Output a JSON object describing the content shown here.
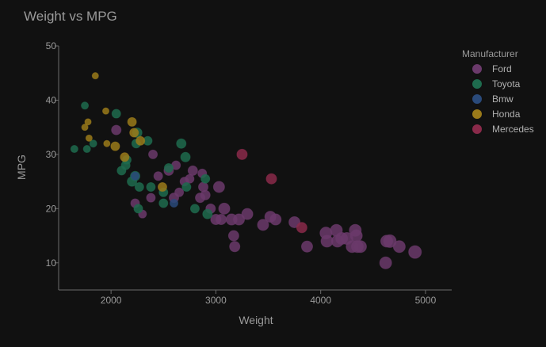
{
  "chart_data": {
    "type": "scatter",
    "title": "Weight vs MPG",
    "xlabel": "Weight",
    "ylabel": "MPG",
    "xlim": [
      1500,
      5250
    ],
    "ylim": [
      5,
      50
    ],
    "xticks": [
      2000,
      3000,
      4000,
      5000
    ],
    "yticks": [
      10,
      20,
      30,
      40,
      50
    ],
    "grid": false,
    "legend_title": "Manufacturer",
    "legend_position": "right",
    "series": [
      {
        "name": "Ford",
        "color": "#6b3a6b",
        "points": [
          [
            2050,
            34.5,
            12
          ],
          [
            2230,
            21,
            11
          ],
          [
            2300,
            19,
            10
          ],
          [
            2400,
            30,
            11
          ],
          [
            2380,
            22,
            11
          ],
          [
            2450,
            26,
            11
          ],
          [
            2550,
            27,
            12
          ],
          [
            2600,
            22,
            12
          ],
          [
            2620,
            28,
            11
          ],
          [
            2650,
            23,
            11
          ],
          [
            2700,
            25,
            11
          ],
          [
            2750,
            25.5,
            11
          ],
          [
            2780,
            27,
            12
          ],
          [
            2850,
            22,
            12
          ],
          [
            2870,
            26.5,
            11
          ],
          [
            2880,
            24,
            12
          ],
          [
            2900,
            22.5,
            12
          ],
          [
            2950,
            20,
            12
          ],
          [
            3000,
            18,
            13
          ],
          [
            3030,
            24,
            14
          ],
          [
            3050,
            18,
            13
          ],
          [
            3080,
            20,
            14
          ],
          [
            3150,
            18,
            14
          ],
          [
            3170,
            15,
            13
          ],
          [
            3180,
            13,
            13
          ],
          [
            3220,
            18,
            14
          ],
          [
            3300,
            19,
            14
          ],
          [
            3450,
            17,
            14
          ],
          [
            3520,
            18.5,
            14
          ],
          [
            3570,
            18,
            14
          ],
          [
            3750,
            17.5,
            14
          ],
          [
            3870,
            13,
            14
          ],
          [
            4050,
            15.5,
            15
          ],
          [
            4060,
            14,
            15
          ],
          [
            4150,
            16,
            15
          ],
          [
            4160,
            14,
            15
          ],
          [
            4200,
            14.5,
            15
          ],
          [
            4250,
            14.5,
            15
          ],
          [
            4300,
            13,
            15
          ],
          [
            4330,
            16,
            15
          ],
          [
            4340,
            15,
            15
          ],
          [
            4350,
            13,
            15
          ],
          [
            4380,
            13,
            15
          ],
          [
            4620,
            10,
            15
          ],
          [
            4630,
            14,
            15
          ],
          [
            4660,
            14,
            16
          ],
          [
            4750,
            13,
            15
          ],
          [
            4900,
            12,
            16
          ]
        ]
      },
      {
        "name": "Toyota",
        "color": "#1e6b4e",
        "points": [
          [
            1650,
            31,
            9
          ],
          [
            1750,
            39,
            9
          ],
          [
            1770,
            31,
            9
          ],
          [
            1830,
            32,
            9
          ],
          [
            2050,
            37.5,
            11
          ],
          [
            2100,
            27,
            11
          ],
          [
            2140,
            28,
            11
          ],
          [
            2150,
            29,
            11
          ],
          [
            2200,
            25,
            12
          ],
          [
            2230,
            26,
            12
          ],
          [
            2240,
            32,
            11
          ],
          [
            2250,
            34,
            12
          ],
          [
            2260,
            20,
            11
          ],
          [
            2270,
            24,
            11
          ],
          [
            2350,
            32.5,
            11
          ],
          [
            2380,
            24,
            11
          ],
          [
            2500,
            21,
            11
          ],
          [
            2500,
            23,
            11
          ],
          [
            2550,
            27.5,
            11
          ],
          [
            2670,
            32,
            12
          ],
          [
            2710,
            29.5,
            12
          ],
          [
            2720,
            24,
            11
          ],
          [
            2800,
            20,
            11
          ],
          [
            2900,
            25.5,
            11
          ],
          [
            2920,
            19,
            12
          ]
        ]
      },
      {
        "name": "Bmw",
        "color": "#2a4a7a",
        "points": [
          [
            2230,
            26,
            10
          ],
          [
            2600,
            21,
            10
          ]
        ]
      },
      {
        "name": "Honda",
        "color": "#9a7a1a",
        "points": [
          [
            1750,
            35,
            8
          ],
          [
            1780,
            36,
            8
          ],
          [
            1790,
            33,
            8
          ],
          [
            1850,
            44.5,
            8
          ],
          [
            1950,
            38,
            8
          ],
          [
            1960,
            32,
            8
          ],
          [
            2040,
            31.5,
            11
          ],
          [
            2130,
            29.5,
            11
          ],
          [
            2200,
            36,
            11
          ],
          [
            2220,
            34,
            11
          ],
          [
            2280,
            32.5,
            11
          ],
          [
            2490,
            24,
            11
          ]
        ]
      },
      {
        "name": "Mercedes",
        "color": "#8a2a4a",
        "points": [
          [
            3250,
            30,
            13
          ],
          [
            3530,
            25.5,
            13
          ],
          [
            3820,
            16.5,
            13
          ]
        ]
      }
    ]
  }
}
